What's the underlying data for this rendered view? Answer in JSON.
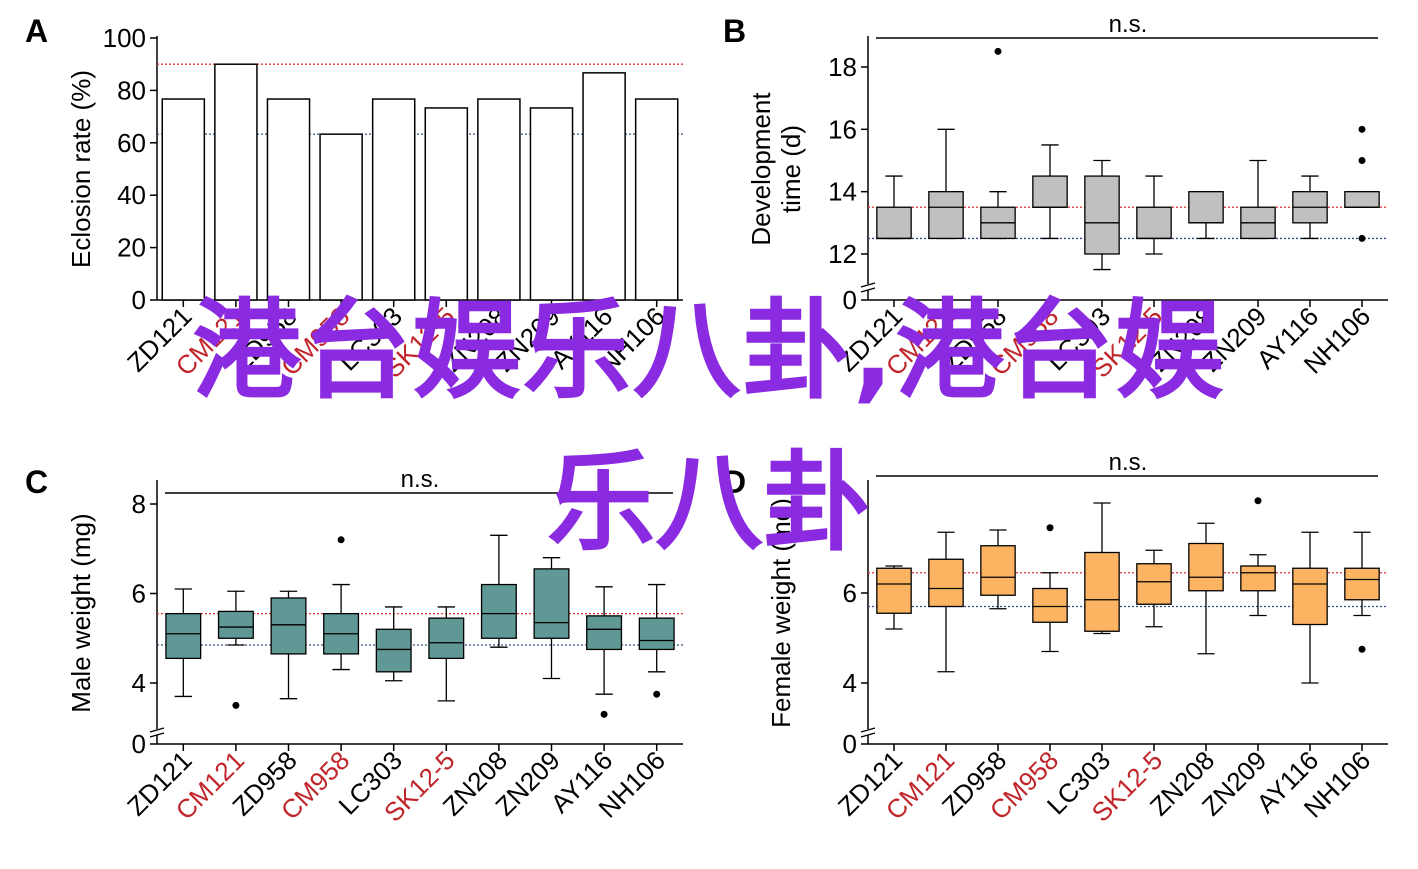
{
  "chart_data": [
    {
      "panel": "A",
      "type": "bar",
      "ylabel": "Eclosion rate (%)",
      "ylim": [
        0,
        100
      ],
      "yticks": [
        0,
        20,
        40,
        60,
        80,
        100
      ],
      "categories": [
        "ZD121",
        "CM121",
        "ZD958",
        "CM958",
        "LC303",
        "SK12-5",
        "ZN208",
        "ZN209",
        "AY116",
        "NH106"
      ],
      "highlight_categories": [
        "CM121",
        "CM958",
        "SK12-5"
      ],
      "values": [
        76.7,
        90,
        76.7,
        63.3,
        76.7,
        73.3,
        76.7,
        73.3,
        86.7,
        76.7
      ],
      "ref_lines": [
        {
          "value": 90,
          "color": "#e8312f"
        },
        {
          "value": 63.3,
          "color": "#2f4f7f"
        }
      ]
    },
    {
      "panel": "B",
      "type": "box",
      "significance": "n.s.",
      "ylabel": "Development time (d)",
      "ylim": [
        11.5,
        19
      ],
      "yticks": [
        12,
        14,
        16,
        18
      ],
      "axis_break_zero": true,
      "box_color": "#c0c0c0",
      "categories": [
        "ZD121",
        "CM121",
        "ZD958",
        "CM958",
        "LC303",
        "SK12-5",
        "ZN208",
        "ZN209",
        "AY116",
        "NH106"
      ],
      "highlight_categories": [
        "CM121",
        "CM958",
        "SK12-5"
      ],
      "boxes": [
        {
          "whislo": 12.5,
          "q1": 12.5,
          "med": 12.5,
          "q3": 13.5,
          "whishi": 14.5,
          "fliers": []
        },
        {
          "whislo": 12.5,
          "q1": 12.5,
          "med": 13.5,
          "q3": 14,
          "whishi": 16,
          "fliers": []
        },
        {
          "whislo": 12.5,
          "q1": 12.5,
          "med": 13,
          "q3": 13.5,
          "whishi": 14,
          "fliers": [
            18.5
          ]
        },
        {
          "whislo": 12.5,
          "q1": 13.5,
          "med": 13.5,
          "q3": 14.5,
          "whishi": 15.5,
          "fliers": []
        },
        {
          "whislo": 11.5,
          "q1": 12,
          "med": 13,
          "q3": 14.5,
          "whishi": 15,
          "fliers": []
        },
        {
          "whislo": 12,
          "q1": 12.5,
          "med": 12.5,
          "q3": 13.5,
          "whishi": 14.5,
          "fliers": []
        },
        {
          "whislo": 12.5,
          "q1": 13,
          "med": 13,
          "q3": 14,
          "whishi": 14,
          "fliers": []
        },
        {
          "whislo": 12.5,
          "q1": 12.5,
          "med": 13,
          "q3": 13.5,
          "whishi": 15,
          "fliers": []
        },
        {
          "whislo": 12.5,
          "q1": 13,
          "med": 13.5,
          "q3": 14,
          "whishi": 14.5,
          "fliers": []
        },
        {
          "whislo": 13.5,
          "q1": 13.5,
          "med": 13.5,
          "q3": 14,
          "whishi": 14,
          "fliers": [
            16,
            15,
            12.5
          ]
        }
      ],
      "ref_lines": [
        {
          "value": 13.5,
          "color": "#e8312f"
        },
        {
          "value": 12.5,
          "color": "#2f4f7f"
        }
      ]
    },
    {
      "panel": "C",
      "type": "box",
      "significance": "n.s.",
      "ylabel": "Male weight (mg)",
      "ylim": [
        3.2,
        8.5
      ],
      "yticks": [
        4,
        6,
        8
      ],
      "axis_break_zero": true,
      "box_color": "#5f9894",
      "categories": [
        "ZD121",
        "CM121",
        "ZD958",
        "CM958",
        "LC303",
        "SK12-5",
        "ZN208",
        "ZN209",
        "AY116",
        "NH106"
      ],
      "highlight_categories": [
        "CM121",
        "CM958",
        "SK12-5"
      ],
      "boxes": [
        {
          "whislo": 3.7,
          "q1": 4.55,
          "med": 5.1,
          "q3": 5.55,
          "whishi": 6.1,
          "fliers": []
        },
        {
          "whislo": 4.85,
          "q1": 5.0,
          "med": 5.25,
          "q3": 5.6,
          "whishi": 6.05,
          "fliers": [
            3.5
          ]
        },
        {
          "whislo": 3.65,
          "q1": 4.65,
          "med": 5.3,
          "q3": 5.9,
          "whishi": 6.05,
          "fliers": []
        },
        {
          "whislo": 4.3,
          "q1": 4.65,
          "med": 5.1,
          "q3": 5.55,
          "whishi": 6.2,
          "fliers": [
            7.2
          ]
        },
        {
          "whislo": 4.05,
          "q1": 4.25,
          "med": 4.75,
          "q3": 5.2,
          "whishi": 5.7,
          "fliers": []
        },
        {
          "whislo": 3.6,
          "q1": 4.55,
          "med": 4.9,
          "q3": 5.45,
          "whishi": 5.7,
          "fliers": []
        },
        {
          "whislo": 4.8,
          "q1": 5.0,
          "med": 5.55,
          "q3": 6.2,
          "whishi": 7.3,
          "fliers": []
        },
        {
          "whislo": 4.1,
          "q1": 5.0,
          "med": 5.35,
          "q3": 6.55,
          "whishi": 6.8,
          "fliers": []
        },
        {
          "whislo": 3.75,
          "q1": 4.75,
          "med": 5.2,
          "q3": 5.5,
          "whishi": 6.15,
          "fliers": [
            3.3
          ]
        },
        {
          "whislo": 4.25,
          "q1": 4.75,
          "med": 4.95,
          "q3": 5.45,
          "whishi": 6.2,
          "fliers": [
            3.75
          ]
        }
      ],
      "ref_lines": [
        {
          "value": 5.55,
          "color": "#e8312f"
        },
        {
          "value": 4.85,
          "color": "#2f4f7f"
        }
      ]
    },
    {
      "panel": "D",
      "type": "box",
      "significance": "n.s.",
      "ylabel": "Female weight (mg)",
      "ylim": [
        3.2,
        8.5
      ],
      "yticks": [
        4,
        6
      ],
      "axis_break_zero": true,
      "box_color": "#fdb462",
      "categories": [
        "ZD121",
        "CM121",
        "ZD958",
        "CM958",
        "LC303",
        "SK12-5",
        "ZN208",
        "ZN209",
        "AY116",
        "NH106"
      ],
      "highlight_categories": [
        "CM121",
        "CM958",
        "SK12-5"
      ],
      "boxes": [
        {
          "whislo": 5.2,
          "q1": 5.55,
          "med": 6.2,
          "q3": 6.55,
          "whishi": 6.6,
          "fliers": []
        },
        {
          "whislo": 4.25,
          "q1": 5.7,
          "med": 6.1,
          "q3": 6.75,
          "whishi": 7.35,
          "fliers": []
        },
        {
          "whislo": 5.65,
          "q1": 5.95,
          "med": 6.35,
          "q3": 7.05,
          "whishi": 7.4,
          "fliers": []
        },
        {
          "whislo": 4.7,
          "q1": 5.35,
          "med": 5.7,
          "q3": 6.1,
          "whishi": 6.45,
          "fliers": [
            7.45
          ]
        },
        {
          "whislo": 5.1,
          "q1": 5.15,
          "med": 5.85,
          "q3": 6.9,
          "whishi": 8.0,
          "fliers": []
        },
        {
          "whislo": 5.25,
          "q1": 5.75,
          "med": 6.25,
          "q3": 6.65,
          "whishi": 6.95,
          "fliers": []
        },
        {
          "whislo": 4.65,
          "q1": 6.05,
          "med": 6.35,
          "q3": 7.1,
          "whishi": 7.55,
          "fliers": []
        },
        {
          "whislo": 5.5,
          "q1": 6.05,
          "med": 6.45,
          "q3": 6.6,
          "whishi": 6.85,
          "fliers": [
            8.05
          ]
        },
        {
          "whislo": 4.0,
          "q1": 5.3,
          "med": 6.2,
          "q3": 6.55,
          "whishi": 7.35,
          "fliers": []
        },
        {
          "whislo": 5.5,
          "q1": 5.85,
          "med": 6.3,
          "q3": 6.55,
          "whishi": 7.35,
          "fliers": [
            4.75
          ]
        }
      ],
      "ref_lines": [
        {
          "value": 6.45,
          "color": "#e8312f"
        },
        {
          "value": 5.7,
          "color": "#2f4f7f"
        }
      ]
    }
  ],
  "colors": {
    "highlight_label": "#c0252a",
    "normal_label": "#000000"
  },
  "overlay": {
    "line1": "港台娱乐八卦,港台娱",
    "line2": "乐八卦",
    "color": "#8a2be2"
  }
}
